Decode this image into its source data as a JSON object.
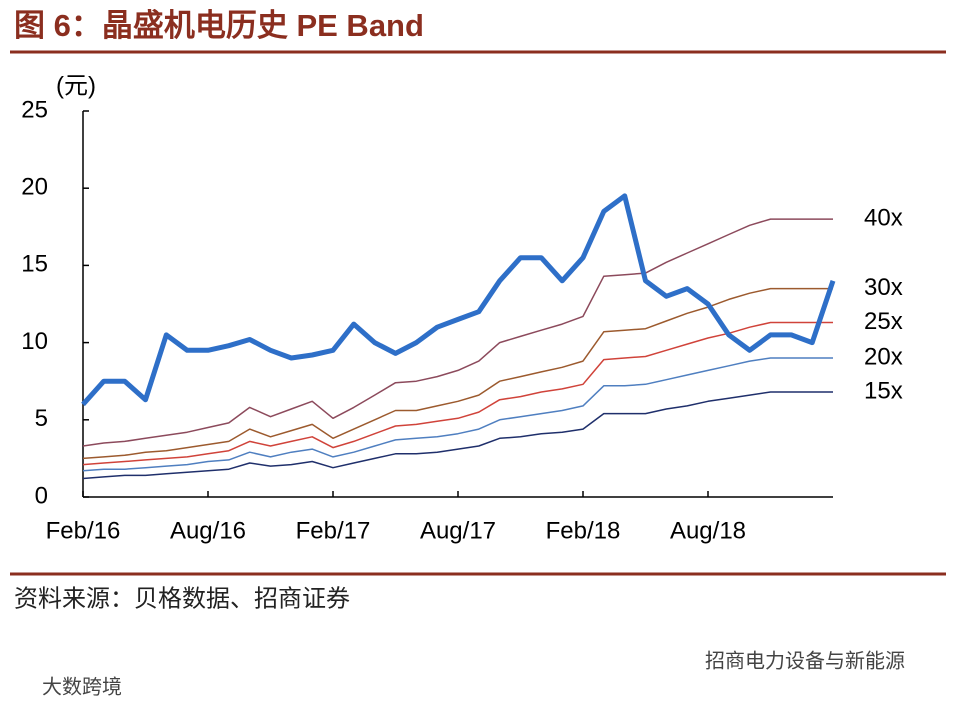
{
  "title": "图 6：晶盛机电历史 PE Band",
  "source": "资料来源：贝格数据、招商证券",
  "watermark_right": "招商电力设备与新能源",
  "watermark_left": "大数跨境",
  "chart_data": {
    "type": "line",
    "ylabel": "(元)",
    "categories": [
      "Feb/16",
      null,
      null,
      null,
      null,
      null,
      "Aug/16",
      null,
      null,
      null,
      null,
      null,
      "Feb/17",
      null,
      null,
      null,
      null,
      null,
      "Aug/17",
      null,
      null,
      null,
      null,
      null,
      "Feb/18",
      null,
      null,
      null,
      null,
      null,
      "Aug/18",
      null,
      null,
      null,
      null,
      null,
      null
    ],
    "ylim": [
      0,
      25
    ],
    "yticks": [
      0,
      5,
      10,
      15,
      20,
      25
    ],
    "series": [
      {
        "color": "#2e6fc8",
        "values": [
          6.0,
          7.5,
          7.5,
          6.3,
          10.5,
          9.5,
          9.5,
          9.8,
          10.2,
          9.5,
          9.0,
          9.2,
          9.5,
          11.2,
          10.0,
          9.3,
          10.0,
          11.0,
          11.5,
          12.0,
          14.0,
          15.5,
          15.5,
          14.0,
          15.5,
          18.5,
          19.5,
          14.0,
          13.0,
          13.5,
          12.5,
          10.5,
          9.5,
          10.5,
          10.5,
          10.0,
          14.0
        ]
      },
      {
        "name": "40x",
        "color": "#8c4a5c",
        "values": [
          3.3,
          3.5,
          3.6,
          3.8,
          4.0,
          4.2,
          4.5,
          4.8,
          5.8,
          5.2,
          5.7,
          6.2,
          5.1,
          5.8,
          6.6,
          7.4,
          7.5,
          7.8,
          8.2,
          8.8,
          10.0,
          10.4,
          10.8,
          11.2,
          11.7,
          14.3,
          14.4,
          14.5,
          15.2,
          15.8,
          16.4,
          17.0,
          17.6,
          18.0,
          18.0,
          18.0,
          18.0
        ]
      },
      {
        "name": "30x",
        "color": "#9c5a2e",
        "values": [
          2.5,
          2.6,
          2.7,
          2.9,
          3.0,
          3.2,
          3.4,
          3.6,
          4.4,
          3.9,
          4.3,
          4.7,
          3.8,
          4.4,
          5.0,
          5.6,
          5.6,
          5.9,
          6.2,
          6.6,
          7.5,
          7.8,
          8.1,
          8.4,
          8.8,
          10.7,
          10.8,
          10.9,
          11.4,
          11.9,
          12.3,
          12.8,
          13.2,
          13.5,
          13.5,
          13.5,
          13.5
        ]
      },
      {
        "name": "25x",
        "color": "#d0433a",
        "values": [
          2.1,
          2.2,
          2.3,
          2.4,
          2.5,
          2.6,
          2.8,
          3.0,
          3.6,
          3.3,
          3.6,
          3.9,
          3.2,
          3.6,
          4.1,
          4.6,
          4.7,
          4.9,
          5.1,
          5.5,
          6.3,
          6.5,
          6.8,
          7.0,
          7.3,
          8.9,
          9.0,
          9.1,
          9.5,
          9.9,
          10.3,
          10.6,
          11.0,
          11.3,
          11.3,
          11.3,
          11.3
        ]
      },
      {
        "name": "20x",
        "color": "#4f7fc0",
        "values": [
          1.7,
          1.8,
          1.8,
          1.9,
          2.0,
          2.1,
          2.3,
          2.4,
          2.9,
          2.6,
          2.9,
          3.1,
          2.6,
          2.9,
          3.3,
          3.7,
          3.8,
          3.9,
          4.1,
          4.4,
          5.0,
          5.2,
          5.4,
          5.6,
          5.9,
          7.2,
          7.2,
          7.3,
          7.6,
          7.9,
          8.2,
          8.5,
          8.8,
          9.0,
          9.0,
          9.0,
          9.0
        ]
      },
      {
        "name": "15x",
        "color": "#1f2f6b",
        "values": [
          1.2,
          1.3,
          1.4,
          1.4,
          1.5,
          1.6,
          1.7,
          1.8,
          2.2,
          2.0,
          2.1,
          2.3,
          1.9,
          2.2,
          2.5,
          2.8,
          2.8,
          2.9,
          3.1,
          3.3,
          3.8,
          3.9,
          4.1,
          4.2,
          4.4,
          5.4,
          5.4,
          5.4,
          5.7,
          5.9,
          6.2,
          6.4,
          6.6,
          6.8,
          6.8,
          6.8,
          6.8
        ]
      }
    ]
  }
}
